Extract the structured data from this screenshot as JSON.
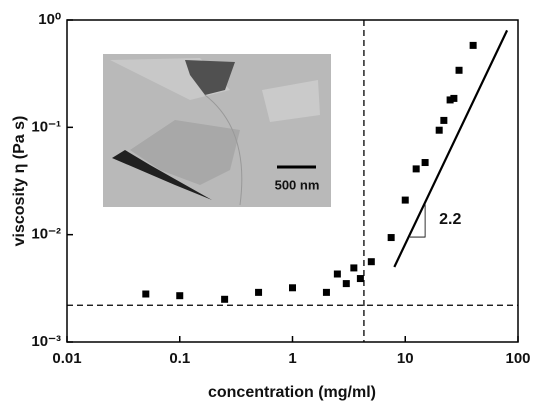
{
  "chart_data": {
    "type": "scatter",
    "x_label": "concentration (mg/ml)",
    "y_label": "viscosity η (Pa s)",
    "log_x": true,
    "log_y": true,
    "xlim": [
      0.01,
      100
    ],
    "ylim": [
      0.001,
      1
    ],
    "xticks": [
      0.01,
      0.1,
      1,
      10,
      100
    ],
    "yticks": [
      {
        "value": 0.001,
        "label": "10⁻³"
      },
      {
        "value": 0.01,
        "label": "10⁻²"
      },
      {
        "value": 0.1,
        "label": "10⁻¹"
      },
      {
        "value": 1,
        "label": "10⁰"
      }
    ],
    "color": "#000000",
    "x": [
      0.05,
      0.1,
      0.25,
      0.5,
      1,
      2,
      2.5,
      3,
      3.5,
      4,
      5,
      7.5,
      10,
      12.5,
      15,
      20,
      22,
      25,
      27,
      30,
      40
    ],
    "values": [
      0.0028,
      0.0027,
      0.0025,
      0.0029,
      0.0032,
      0.0029,
      0.0043,
      0.0035,
      0.0049,
      0.0039,
      0.0056,
      0.0094,
      0.021,
      0.041,
      0.047,
      0.094,
      0.116,
      0.18,
      0.186,
      0.34,
      0.58
    ],
    "fit_line": {
      "x": [
        8,
        80
      ],
      "values": [
        0.005,
        0.8
      ]
    },
    "hline": 0.0022,
    "vline": 4.3,
    "slope_triangle": {
      "x": [
        11,
        15
      ],
      "values": [
        0.0095,
        0.02
      ]
    },
    "slope_label": "2.2",
    "scale_bar_label": "500 nm"
  }
}
